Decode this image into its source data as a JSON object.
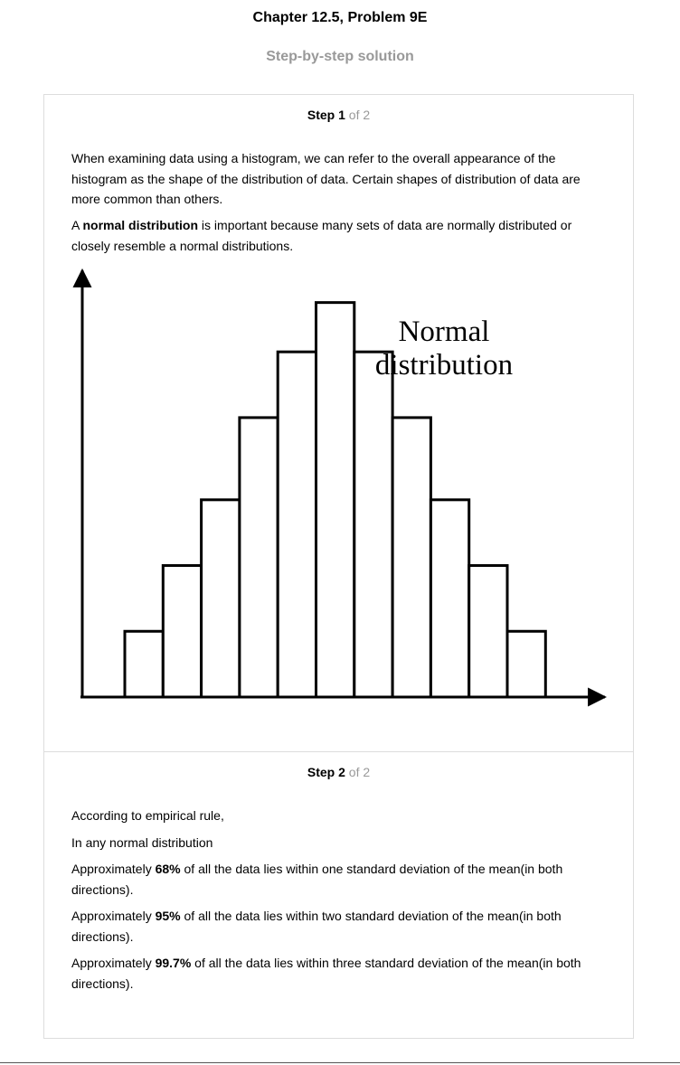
{
  "header": {
    "title": "Chapter 12.5, Problem 9E",
    "subtitle": "Step-by-step solution"
  },
  "steps": [
    {
      "label": "Step",
      "number": "1",
      "of_text": "of 2",
      "paragraphs": [
        {
          "text": "When examining data using a histogram, we can refer to the overall appearance of the histogram as the shape of the distribution of data. Certain shapes of distribution of data are more common than others."
        },
        {
          "before": "A ",
          "bold": "normal distribution",
          "after": " is important because many sets of data are normally distributed or closely resemble a normal distributions."
        }
      ]
    },
    {
      "label": "Step",
      "number": "2",
      "of_text": "of 2",
      "paragraphs": [
        {
          "text": "According to empirical rule,"
        },
        {
          "text": "In any normal distribution"
        },
        {
          "before": "Approximately ",
          "bold": "68%",
          "after": " of all the data lies within one standard deviation of the mean(in both directions)."
        },
        {
          "before": "Approximately ",
          "bold": "95%",
          "after": " of all the data lies within two standard deviation of the mean(in both directions)."
        },
        {
          "before": "Approximately ",
          "bold": "99.7%",
          "after": " of all the data lies within three standard deviation of the mean(in both directions)."
        }
      ]
    }
  ],
  "chart_data": {
    "type": "bar",
    "title": "Normal distribution",
    "title_lines": [
      "Normal",
      "distribution"
    ],
    "values": [
      1,
      2,
      3,
      4.25,
      5.25,
      6,
      5.25,
      4.25,
      3,
      2,
      1
    ],
    "ylim": [
      0,
      6.6
    ],
    "xlabel": "",
    "ylabel": "",
    "grid": false,
    "bar_fill": "#ffffff",
    "bar_stroke": "#000000"
  }
}
